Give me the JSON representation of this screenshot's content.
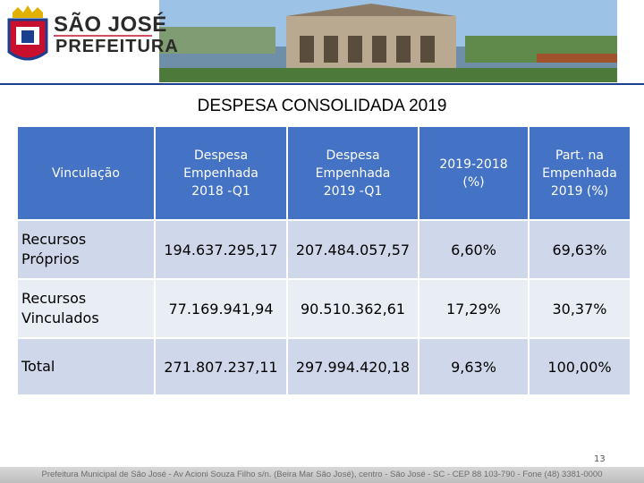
{
  "header": {
    "logo_line1": "SÃO JOSÉ",
    "logo_line2": "PREFEITURA"
  },
  "title": "DESPESA CONSOLIDADA 2019",
  "table": {
    "columns": [
      "Vinculação",
      "Despesa Empenhada 2018 -Q1",
      "Despesa Empenhada 2019 -Q1",
      "2019-2018 (%)",
      "Part. na Empenhada 2019 (%)"
    ],
    "rows": [
      [
        "Recursos Próprios",
        "194.637.295,17",
        "207.484.057,57",
        "6,60%",
        "69,63%"
      ],
      [
        "Recursos Vinculados",
        "77.169.941,94",
        "90.510.362,61",
        "17,29%",
        "30,37%"
      ],
      [
        "Total",
        "271.807.237,11",
        "297.994.420,18",
        "9,63%",
        "100,00%"
      ]
    ]
  },
  "page_number": "13",
  "footer": "Prefeitura Municipal de São José - Av Acioni Souza Filho s/n. (Beira Mar São José), centro - São José - SC - CEP 88 103-790 - Fone (48) 3381-0000"
}
